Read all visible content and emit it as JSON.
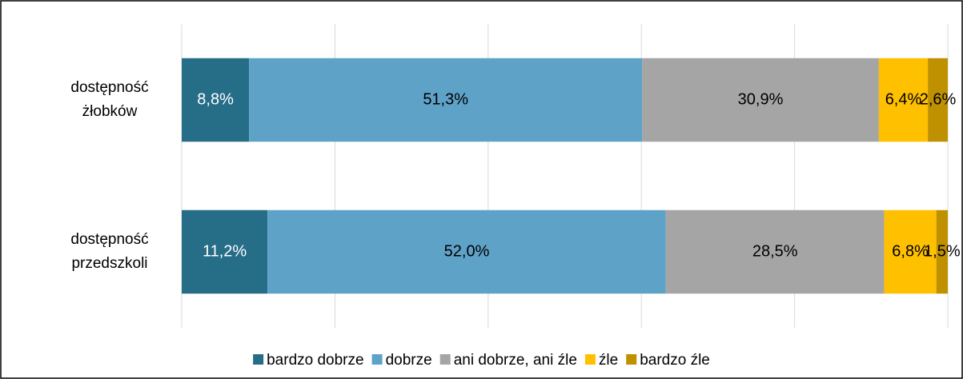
{
  "chart_data": {
    "type": "stacked-bar-horizontal",
    "categories": [
      "dostępność żłobków",
      "dostępność przedszkoli"
    ],
    "series": [
      {
        "name": "bardzo dobrze",
        "color": "#266d87",
        "values": [
          8.8,
          11.2
        ],
        "value_labels": [
          "8,8%",
          "11,2%"
        ]
      },
      {
        "name": "dobrze",
        "color": "#5fa2c8",
        "values": [
          51.3,
          52.0
        ],
        "value_labels": [
          "51,3%",
          "52,0%"
        ]
      },
      {
        "name": "ani dobrze, ani źle",
        "color": "#a5a5a5",
        "values": [
          30.9,
          28.5
        ],
        "value_labels": [
          "30,9%",
          "28,5%"
        ]
      },
      {
        "name": "źle",
        "color": "#ffc000",
        "values": [
          6.4,
          6.8
        ],
        "value_labels": [
          "6,4%",
          "6,8%"
        ]
      },
      {
        "name": "bardzo źle",
        "color": "#bf9000",
        "values": [
          2.6,
          1.5
        ],
        "value_labels": [
          "2,6%",
          "1,5%"
        ]
      }
    ],
    "xlim": [
      0,
      100
    ],
    "xticks": [
      0,
      20,
      40,
      60,
      80,
      100
    ],
    "grid": true,
    "legend": "bottom"
  }
}
